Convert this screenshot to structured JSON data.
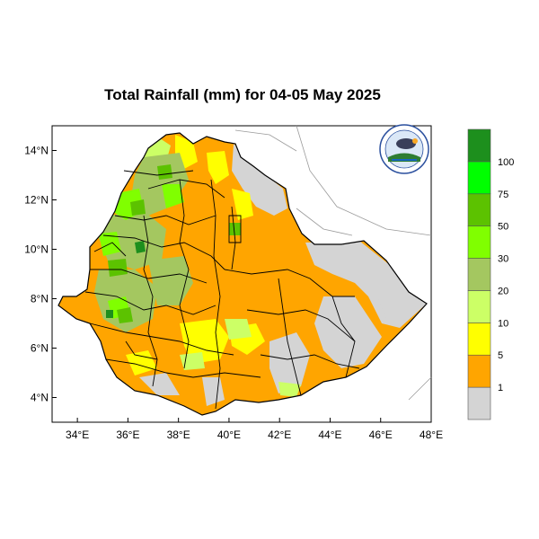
{
  "title": "Total Rainfall (mm) for 04-05 May 2025",
  "map": {
    "lon_range": [
      33,
      48
    ],
    "lat_range": [
      3,
      15
    ],
    "x_ticks": [
      "34°E",
      "36°E",
      "38°E",
      "40°E",
      "42°E",
      "44°E",
      "46°E",
      "48°E"
    ],
    "y_ticks": [
      "14°N",
      "12°N",
      "10°N",
      "8°N",
      "6°N",
      "4°N"
    ]
  },
  "colorbar": {
    "labels": [
      "1",
      "5",
      "10",
      "20",
      "30",
      "50",
      "75",
      "100"
    ],
    "colors": [
      "#d4d4d4",
      "#ffa500",
      "#ffff00",
      "#ccff66",
      "#a4c760",
      "#80ff00",
      "#5cc200",
      "#00ff00",
      "#1d8f1d"
    ]
  },
  "logo": {
    "icon": "meteorology-agency-logo"
  }
}
